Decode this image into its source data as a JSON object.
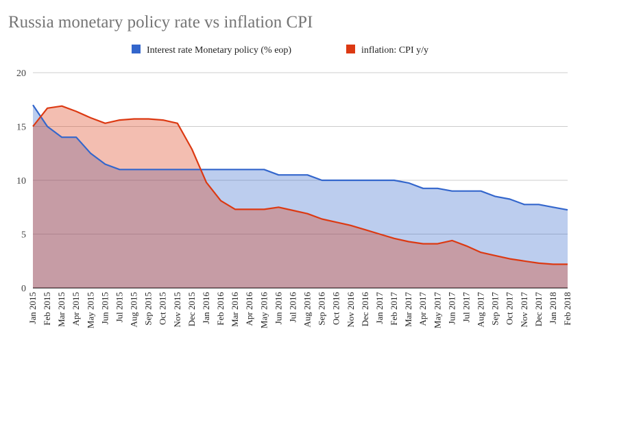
{
  "chart_data": {
    "type": "area",
    "title": "Russia monetary policy rate vs inflation CPI",
    "xlabel": "",
    "ylabel": "",
    "ylim": [
      0,
      20
    ],
    "yticks": [
      0,
      5,
      10,
      15,
      20
    ],
    "grid": true,
    "legend": "top",
    "categories": [
      "Jan 2015",
      "Feb 2015",
      "Mar 2015",
      "Apr 2015",
      "May 2015",
      "Jun 2015",
      "Jul 2015",
      "Aug 2015",
      "Sep 2015",
      "Oct 2015",
      "Nov 2015",
      "Dec 2015",
      "Jan 2016",
      "Feb 2016",
      "Mar 2016",
      "Apr 2016",
      "May 2016",
      "Jun 2016",
      "Jul 2016",
      "Aug 2016",
      "Sep 2016",
      "Oct 2016",
      "Nov 2016",
      "Dec 2016",
      "Jan 2017",
      "Feb 2017",
      "Mar 2017",
      "Apr 2017",
      "May 2017",
      "Jun 2017",
      "Jul 2017",
      "Aug 2017",
      "Sep 2017",
      "Oct 2017",
      "Nov 2017",
      "Dec 2017",
      "Jan 2018",
      "Feb 2018"
    ],
    "series": [
      {
        "name": "Interest rate Monetary policy (% eop)",
        "color": "#3366cc",
        "values": [
          17,
          15,
          14,
          14,
          12.5,
          11.5,
          11,
          11,
          11,
          11,
          11,
          11,
          11,
          11,
          11,
          11,
          11,
          10.5,
          10.5,
          10.5,
          10,
          10,
          10,
          10,
          10,
          10,
          9.75,
          9.25,
          9.25,
          9,
          9,
          9,
          8.5,
          8.25,
          7.75,
          7.75,
          7.5,
          7.25
        ]
      },
      {
        "name": "inflation: CPI y/y",
        "color": "#dc3912",
        "values": [
          15.0,
          16.7,
          16.9,
          16.4,
          15.8,
          15.3,
          15.6,
          15.7,
          15.7,
          15.6,
          15.3,
          12.9,
          9.8,
          8.1,
          7.3,
          7.3,
          7.3,
          7.5,
          7.2,
          6.9,
          6.4,
          6.1,
          5.8,
          5.4,
          5.0,
          4.6,
          4.3,
          4.1,
          4.1,
          4.4,
          3.9,
          3.3,
          3.0,
          2.7,
          2.5,
          2.3,
          2.2,
          2.2
        ]
      }
    ]
  }
}
